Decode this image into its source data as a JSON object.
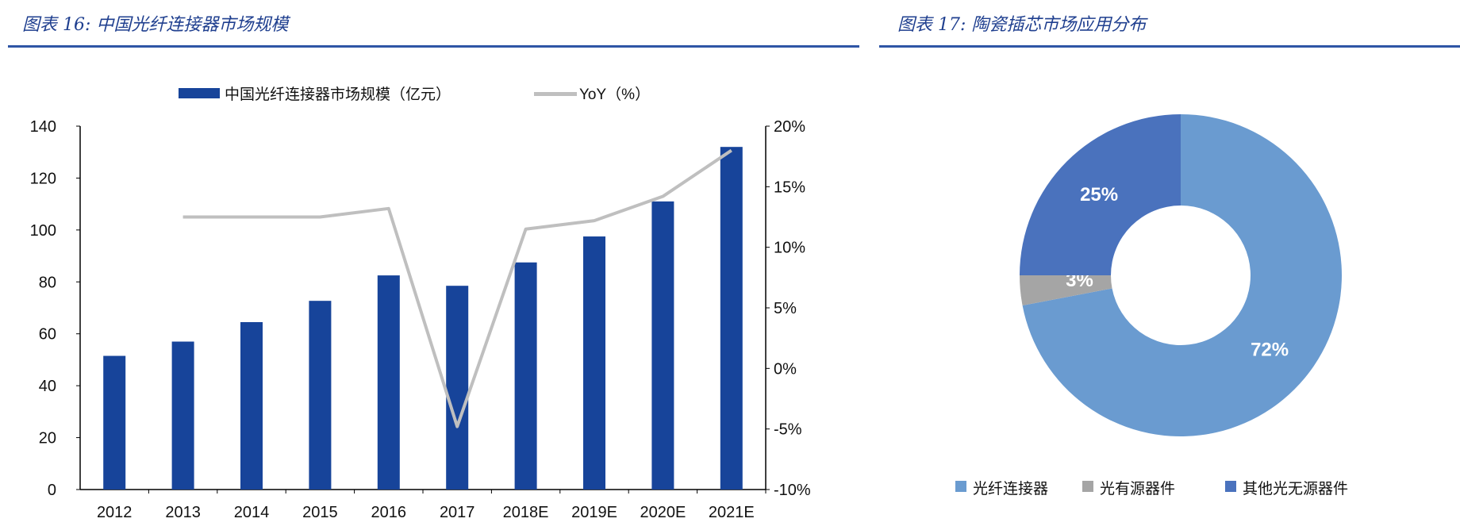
{
  "chart_data": [
    {
      "type": "bar+line",
      "title": "图表 16: 中国光纤连接器市场规模",
      "categories": [
        "2012",
        "2013",
        "2014",
        "2015",
        "2016",
        "2017",
        "2018E",
        "2019E",
        "2020E",
        "2021E"
      ],
      "series": [
        {
          "name": "中国光纤连接器市场规模（亿元）",
          "type": "bar",
          "axis": "left",
          "color": "#17449A",
          "values": [
            51.5,
            57,
            64.5,
            72.7,
            82.5,
            78.5,
            87.5,
            97.5,
            111,
            132
          ]
        },
        {
          "name": "YoY（%）",
          "type": "line",
          "axis": "right",
          "color": "#BFBFBF",
          "values": [
            null,
            12.5,
            12.5,
            12.5,
            13.2,
            -4.8,
            11.5,
            12.2,
            14.2,
            18.0
          ]
        }
      ],
      "ylim": [
        0,
        140
      ],
      "yticks": [
        "0",
        "20",
        "40",
        "60",
        "80",
        "100",
        "120",
        "140"
      ],
      "y2lim": [
        -10,
        20
      ],
      "y2ticks": [
        "-10%",
        "-5%",
        "0%",
        "5%",
        "10%",
        "15%",
        "20%"
      ],
      "legend": "top",
      "grid": false
    },
    {
      "type": "pie",
      "donut": true,
      "title": "图表 17: 陶瓷插芯市场应用分布",
      "slices": [
        {
          "name": "光纤连接器",
          "value": 72,
          "label": "72%",
          "color": "#6A9BD0"
        },
        {
          "name": "光有源器件",
          "value": 3,
          "label": "3%",
          "color": "#A5A5A5"
        },
        {
          "name": "其他光无源器件",
          "value": 25,
          "label": "25%",
          "color": "#4A72BD"
        }
      ],
      "legend": "bottom"
    }
  ]
}
